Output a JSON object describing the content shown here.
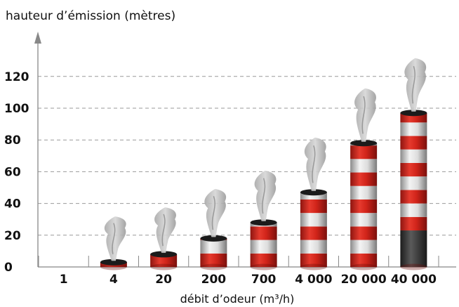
{
  "chart_data": {
    "type": "bar",
    "ylabel": "hauteur d’émission (mètres)",
    "xlabel": "débit d’odeur (m³/h)",
    "categories": [
      "1",
      "4",
      "20",
      "200",
      "700",
      "4 000",
      "20 000",
      "40 000"
    ],
    "values": [
      0,
      3,
      8,
      18,
      28,
      47,
      78,
      97
    ],
    "yticks": [
      0,
      20,
      40,
      60,
      80,
      100,
      120
    ],
    "ylim": [
      0,
      130
    ],
    "grid": true,
    "colors": {
      "stack_red": "#e1251b",
      "stack_white": "#e8e8e8",
      "stack_dark": "#3a3a3a",
      "smoke": "#b9b9b9",
      "grid": "#999999",
      "axis": "#888888"
    }
  }
}
